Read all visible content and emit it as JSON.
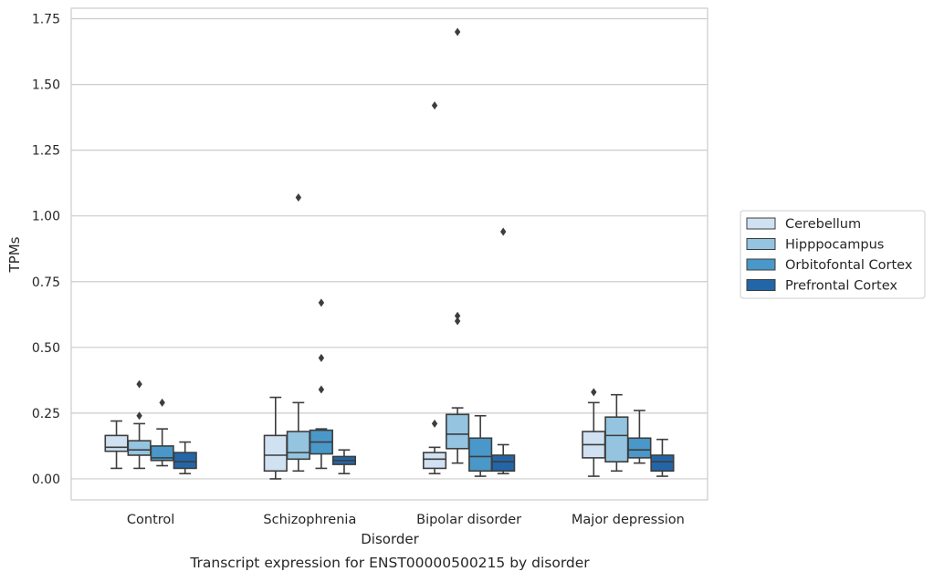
{
  "chart_data": {
    "type": "box",
    "title": "",
    "caption": "Transcript expression for ENST00000500215 by disorder",
    "xlabel": "Disorder",
    "ylabel": "TPMs",
    "ylim": [
      -0.08,
      1.79
    ],
    "yticks": [
      0.0,
      0.25,
      0.5,
      0.75,
      1.0,
      1.25,
      1.5,
      1.75
    ],
    "ytick_labels": [
      "0.00",
      "0.25",
      "0.50",
      "0.75",
      "1.00",
      "1.25",
      "1.50",
      "1.75"
    ],
    "grid": "horizontal",
    "legend_position": "right",
    "categories": [
      "Control",
      "Schizophrenia",
      "Bipolar disorder",
      "Major depression"
    ],
    "series": [
      {
        "name": "Cerebellum",
        "color": "#d0e1f2",
        "boxes": [
          {
            "whisker_low": 0.04,
            "q1": 0.105,
            "median": 0.12,
            "q3": 0.165,
            "whisker_high": 0.22,
            "outliers": []
          },
          {
            "whisker_low": 0.0,
            "q1": 0.03,
            "median": 0.09,
            "q3": 0.165,
            "whisker_high": 0.31,
            "outliers": []
          },
          {
            "whisker_low": 0.02,
            "q1": 0.04,
            "median": 0.075,
            "q3": 0.1,
            "whisker_high": 0.12,
            "outliers": [
              0.21,
              1.42
            ]
          },
          {
            "whisker_low": 0.01,
            "q1": 0.08,
            "median": 0.13,
            "q3": 0.18,
            "whisker_high": 0.29,
            "outliers": [
              0.33
            ]
          }
        ]
      },
      {
        "name": "Hipppocampus",
        "color": "#94c4df",
        "boxes": [
          {
            "whisker_low": 0.04,
            "q1": 0.09,
            "median": 0.11,
            "q3": 0.145,
            "whisker_high": 0.21,
            "outliers": [
              0.24,
              0.36
            ]
          },
          {
            "whisker_low": 0.03,
            "q1": 0.075,
            "median": 0.1,
            "q3": 0.18,
            "whisker_high": 0.29,
            "outliers": [
              1.07
            ]
          },
          {
            "whisker_low": 0.06,
            "q1": 0.115,
            "median": 0.17,
            "q3": 0.245,
            "whisker_high": 0.27,
            "outliers": [
              0.6,
              0.62,
              1.7
            ]
          },
          {
            "whisker_low": 0.03,
            "q1": 0.065,
            "median": 0.165,
            "q3": 0.235,
            "whisker_high": 0.32,
            "outliers": []
          }
        ]
      },
      {
        "name": "Orbitofontal Cortex",
        "color": "#4a98c9",
        "boxes": [
          {
            "whisker_low": 0.05,
            "q1": 0.07,
            "median": 0.08,
            "q3": 0.125,
            "whisker_high": 0.19,
            "outliers": [
              0.29
            ]
          },
          {
            "whisker_low": 0.04,
            "q1": 0.095,
            "median": 0.14,
            "q3": 0.185,
            "whisker_high": 0.19,
            "outliers": [
              0.34,
              0.46,
              0.67
            ]
          },
          {
            "whisker_low": 0.01,
            "q1": 0.03,
            "median": 0.085,
            "q3": 0.155,
            "whisker_high": 0.24,
            "outliers": []
          },
          {
            "whisker_low": 0.06,
            "q1": 0.08,
            "median": 0.11,
            "q3": 0.155,
            "whisker_high": 0.26,
            "outliers": []
          }
        ]
      },
      {
        "name": "Prefrontal Cortex",
        "color": "#2366a8",
        "boxes": [
          {
            "whisker_low": 0.02,
            "q1": 0.04,
            "median": 0.065,
            "q3": 0.1,
            "whisker_high": 0.14,
            "outliers": []
          },
          {
            "whisker_low": 0.02,
            "q1": 0.055,
            "median": 0.07,
            "q3": 0.085,
            "whisker_high": 0.11,
            "outliers": []
          },
          {
            "whisker_low": 0.02,
            "q1": 0.03,
            "median": 0.065,
            "q3": 0.09,
            "whisker_high": 0.13,
            "outliers": [
              0.94
            ]
          },
          {
            "whisker_low": 0.01,
            "q1": 0.03,
            "median": 0.065,
            "q3": 0.09,
            "whisker_high": 0.15,
            "outliers": []
          }
        ]
      }
    ]
  }
}
